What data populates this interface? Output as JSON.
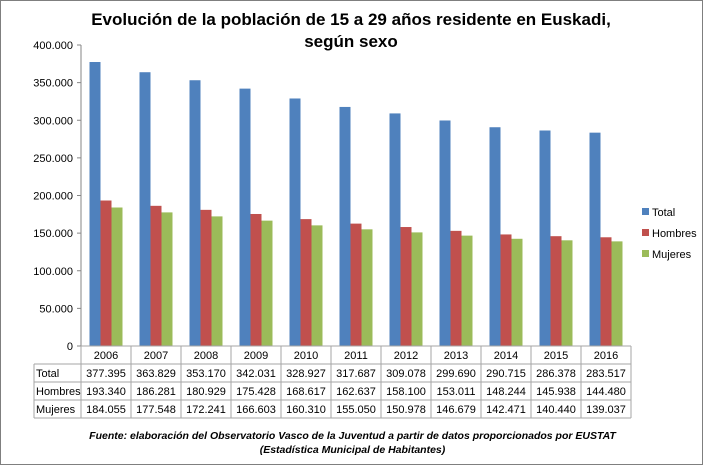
{
  "chart_data": {
    "type": "bar",
    "title_line1": "Evolución de la población de 15 a 29 años residente en Euskadi,",
    "title_line2": "según sexo",
    "categories": [
      "2006",
      "2007",
      "2008",
      "2009",
      "2010",
      "2011",
      "2012",
      "2013",
      "2014",
      "2015",
      "2016"
    ],
    "series": [
      {
        "name": "Total",
        "color": "#4f81bd",
        "values": [
          377395,
          363829,
          353170,
          342031,
          328927,
          317687,
          309078,
          299690,
          290715,
          286378,
          283517
        ],
        "labels": [
          "377.395",
          "363.829",
          "353.170",
          "342.031",
          "328.927",
          "317.687",
          "309.078",
          "299.690",
          "290.715",
          "286.378",
          "283.517"
        ]
      },
      {
        "name": "Hombres",
        "color": "#c0504d",
        "values": [
          193340,
          186281,
          180929,
          175428,
          168617,
          162637,
          158100,
          153011,
          148244,
          145938,
          144480
        ],
        "labels": [
          "193.340",
          "186.281",
          "180.929",
          "175.428",
          "168.617",
          "162.637",
          "158.100",
          "153.011",
          "148.244",
          "145.938",
          "144.480"
        ]
      },
      {
        "name": "Mujeres",
        "color": "#9bbb59",
        "values": [
          184055,
          177548,
          172241,
          166603,
          160310,
          155050,
          150978,
          146679,
          142471,
          140440,
          139037
        ],
        "labels": [
          "184.055",
          "177.548",
          "172.241",
          "166.603",
          "160.310",
          "155.050",
          "150.978",
          "146.679",
          "142.471",
          "140.440",
          "139.037"
        ]
      }
    ],
    "ylim": [
      0,
      400000
    ],
    "yticks": [
      "0",
      "50.000",
      "100.000",
      "150.000",
      "200.000",
      "250.000",
      "300.000",
      "350.000",
      "400.000"
    ],
    "grid": false,
    "legend": "right",
    "data_table": true
  },
  "source": {
    "line1": "Fuente: elaboración del Observatorio Vasco de la Juventud a partir de datos proporcionados por EUSTAT",
    "line2": "(Estadística Municipal de Habitantes)"
  }
}
